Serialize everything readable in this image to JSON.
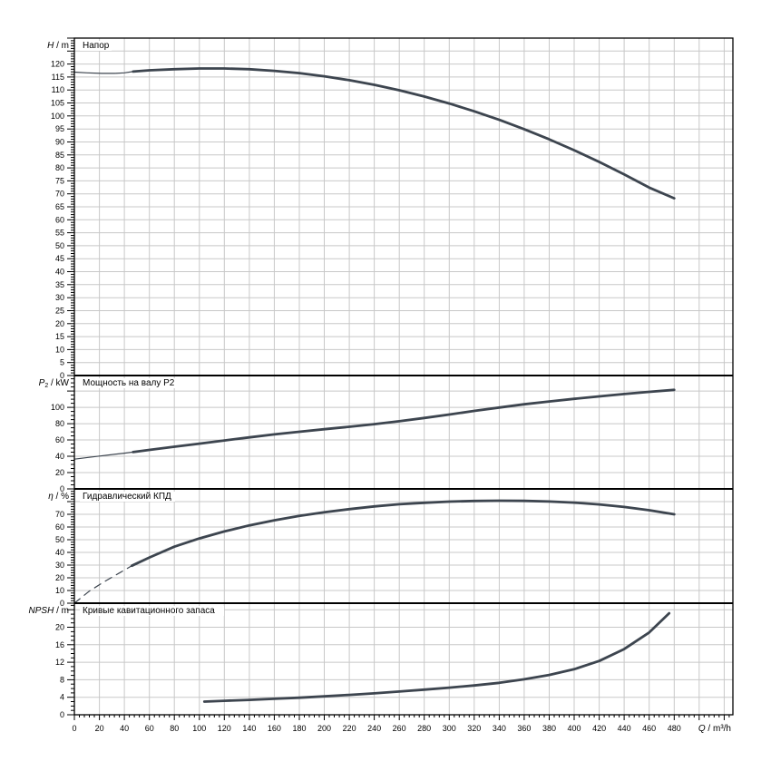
{
  "colors": {
    "curve": "#3d454f",
    "grid": "#c8c8c8",
    "axis": "#000000",
    "text": "#000000"
  },
  "xaxis": {
    "var": "Q",
    "unit_suffix": " / m³/h",
    "min": 0,
    "max": 527,
    "major_step": 20,
    "minor_step": 4,
    "last_label": 480
  },
  "chart_data": [
    {
      "type": "line",
      "title": "Напор",
      "ylabel_var": "H",
      "ylabel_rest": " / m",
      "ylim": [
        0,
        130
      ],
      "major_step": 5,
      "minor_step": 1,
      "last_label": 120,
      "series": [
        {
          "name": "head-curve-thin",
          "style": "thin",
          "points": [
            [
              0,
              116.9
            ],
            [
              10,
              116.6
            ],
            [
              22,
              116.4
            ],
            [
              32,
              116.4
            ],
            [
              40,
              116.6
            ],
            [
              47,
              117.1
            ]
          ]
        },
        {
          "name": "head-curve",
          "style": "thick",
          "points": [
            [
              47,
              117.1
            ],
            [
              60,
              117.6
            ],
            [
              80,
              118.0
            ],
            [
              100,
              118.3
            ],
            [
              120,
              118.3
            ],
            [
              140,
              118.0
            ],
            [
              160,
              117.4
            ],
            [
              180,
              116.5
            ],
            [
              200,
              115.3
            ],
            [
              220,
              113.8
            ],
            [
              240,
              112.0
            ],
            [
              260,
              109.9
            ],
            [
              280,
              107.5
            ],
            [
              300,
              104.8
            ],
            [
              320,
              101.8
            ],
            [
              340,
              98.5
            ],
            [
              360,
              94.9
            ],
            [
              380,
              91.0
            ],
            [
              400,
              86.8
            ],
            [
              420,
              82.3
            ],
            [
              440,
              77.5
            ],
            [
              460,
              72.4
            ],
            [
              480,
              68.3
            ]
          ]
        }
      ]
    },
    {
      "type": "line",
      "title": "Мощность на валу P2",
      "ylabel_var": "P",
      "ylabel_sub": "2",
      "ylabel_rest": " / kW",
      "ylim": [
        0,
        139
      ],
      "major_step": 20,
      "minor_step": 5,
      "last_label": 100,
      "series": [
        {
          "name": "power-curve-thin",
          "style": "thin",
          "points": [
            [
              0,
              36.5
            ],
            [
              20,
              40.2
            ],
            [
              40,
              43.8
            ],
            [
              47,
              45.2
            ]
          ]
        },
        {
          "name": "power-curve",
          "style": "thick",
          "points": [
            [
              47,
              45.2
            ],
            [
              60,
              47.8
            ],
            [
              80,
              51.7
            ],
            [
              100,
              55.5
            ],
            [
              120,
              59.4
            ],
            [
              140,
              63.2
            ],
            [
              160,
              66.8
            ],
            [
              180,
              70.1
            ],
            [
              200,
              73.2
            ],
            [
              220,
              76.2
            ],
            [
              240,
              79.4
            ],
            [
              260,
              83.0
            ],
            [
              280,
              87.0
            ],
            [
              300,
              91.2
            ],
            [
              320,
              95.6
            ],
            [
              340,
              99.8
            ],
            [
              360,
              103.7
            ],
            [
              380,
              107.2
            ],
            [
              400,
              110.4
            ],
            [
              420,
              113.4
            ],
            [
              440,
              116.3
            ],
            [
              460,
              119.0
            ],
            [
              480,
              121.4
            ]
          ]
        }
      ]
    },
    {
      "type": "line",
      "title": "Гидравлический КПД",
      "ylabel_var": "η",
      "ylabel_rest": " / %",
      "ylim": [
        0,
        90
      ],
      "major_step": 10,
      "minor_step": 2,
      "last_label": 70,
      "series": [
        {
          "name": "efficiency-curve-dashed",
          "style": "dashed",
          "points": [
            [
              0,
              0
            ],
            [
              12,
              9.5
            ],
            [
              24,
              17.0
            ],
            [
              36,
              23.8
            ],
            [
              46,
              29.5
            ]
          ]
        },
        {
          "name": "efficiency-curve",
          "style": "thick",
          "points": [
            [
              46,
              29.5
            ],
            [
              60,
              36.0
            ],
            [
              80,
              44.5
            ],
            [
              100,
              51.0
            ],
            [
              120,
              56.5
            ],
            [
              140,
              61.3
            ],
            [
              160,
              65.3
            ],
            [
              180,
              68.7
            ],
            [
              200,
              71.6
            ],
            [
              220,
              74.1
            ],
            [
              240,
              76.2
            ],
            [
              260,
              77.9
            ],
            [
              280,
              79.1
            ],
            [
              300,
              80.0
            ],
            [
              320,
              80.5
            ],
            [
              340,
              80.7
            ],
            [
              360,
              80.6
            ],
            [
              380,
              80.1
            ],
            [
              400,
              79.2
            ],
            [
              420,
              77.8
            ],
            [
              440,
              75.8
            ],
            [
              460,
              73.2
            ],
            [
              480,
              70.0
            ]
          ]
        }
      ]
    },
    {
      "type": "line",
      "title": "Кривые кавитационного запаса",
      "ylabel_var": "NPSH",
      "ylabel_rest": " / m",
      "ylim": [
        0,
        25.5
      ],
      "major_step": 4,
      "minor_step": 1,
      "last_label": 20,
      "series": [
        {
          "name": "npsh-curve",
          "style": "thick",
          "points": [
            [
              104,
              3.0
            ],
            [
              120,
              3.2
            ],
            [
              140,
              3.4
            ],
            [
              160,
              3.65
            ],
            [
              180,
              3.9
            ],
            [
              200,
              4.2
            ],
            [
              220,
              4.55
            ],
            [
              240,
              4.9
            ],
            [
              260,
              5.3
            ],
            [
              280,
              5.75
            ],
            [
              300,
              6.2
            ],
            [
              320,
              6.7
            ],
            [
              340,
              7.3
            ],
            [
              360,
              8.1
            ],
            [
              380,
              9.1
            ],
            [
              400,
              10.4
            ],
            [
              420,
              12.3
            ],
            [
              440,
              15.0
            ],
            [
              460,
              18.8
            ],
            [
              476,
              23.2
            ]
          ]
        }
      ]
    }
  ]
}
